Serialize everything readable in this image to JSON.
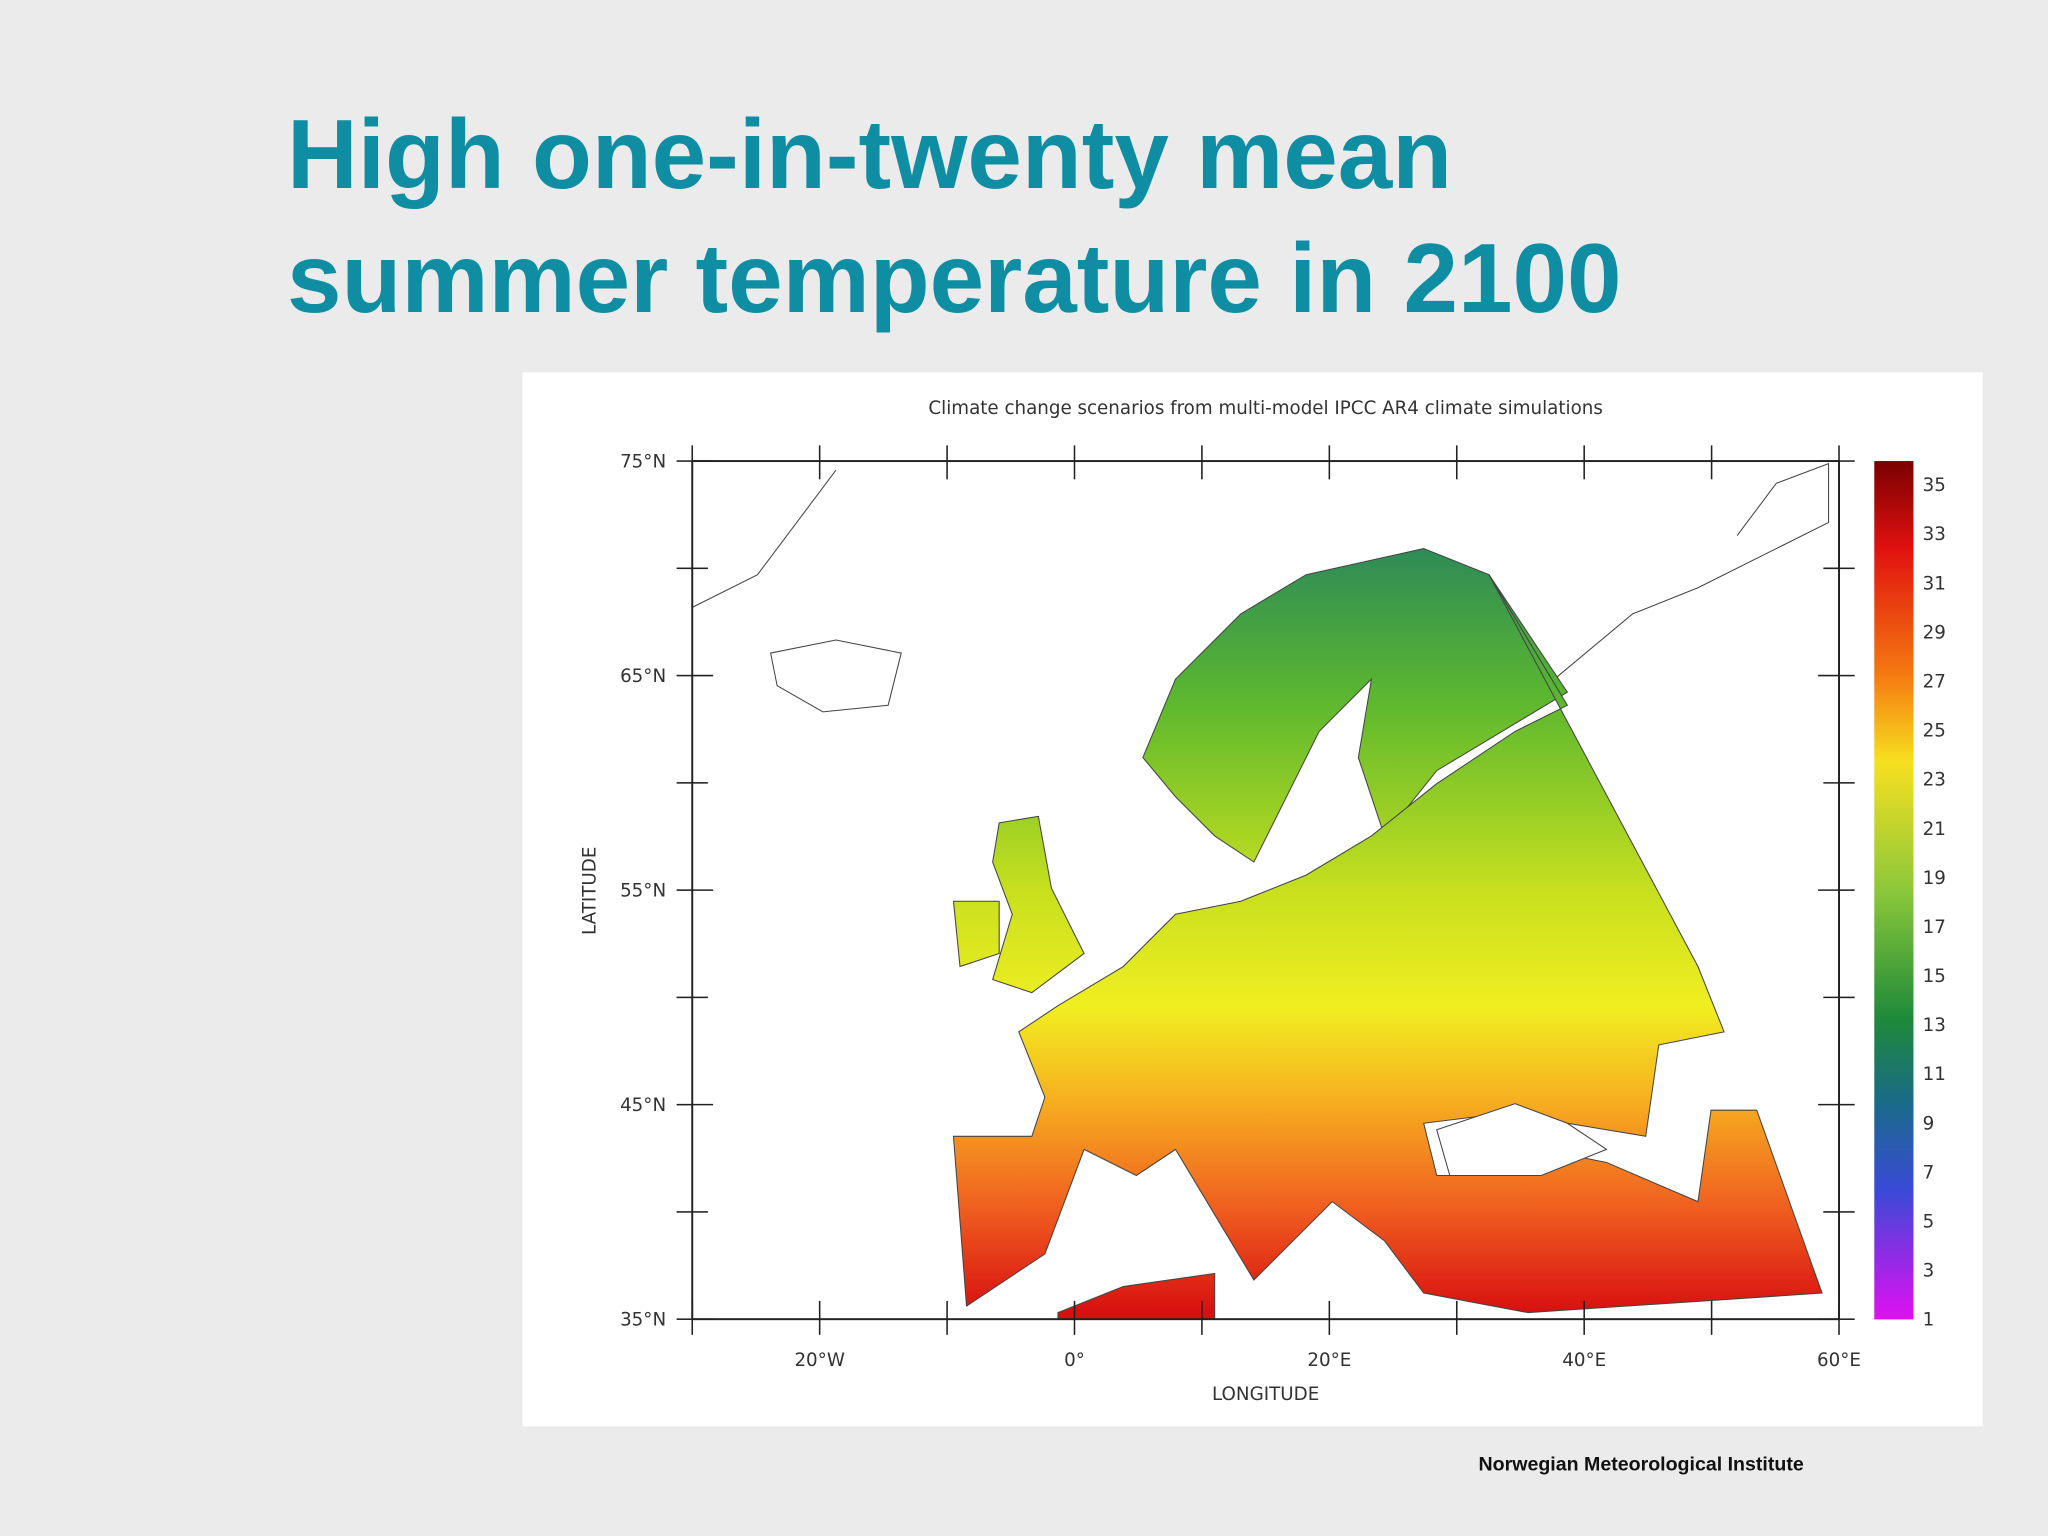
{
  "title": "High one-in-twenty mean summer temperature in 2100",
  "figure": {
    "subtitle": "Climate change scenarios from multi-model IPCC AR4 climate simulations",
    "y_axis_label": "LATITUDE",
    "x_axis_label": "LONGITUDE",
    "lat_ticks": [
      "75°N",
      "65°N",
      "55°N",
      "45°N",
      "35°N"
    ],
    "lon_ticks": [
      "20°W",
      "0°",
      "20°E",
      "40°E",
      "60°E"
    ],
    "colorbar_labels": [
      35,
      33,
      31,
      29,
      27,
      25,
      23,
      21,
      19,
      17,
      15,
      13,
      11,
      9,
      7,
      5,
      3,
      1
    ]
  },
  "footer": "Norwegian Meteorological Institute"
}
